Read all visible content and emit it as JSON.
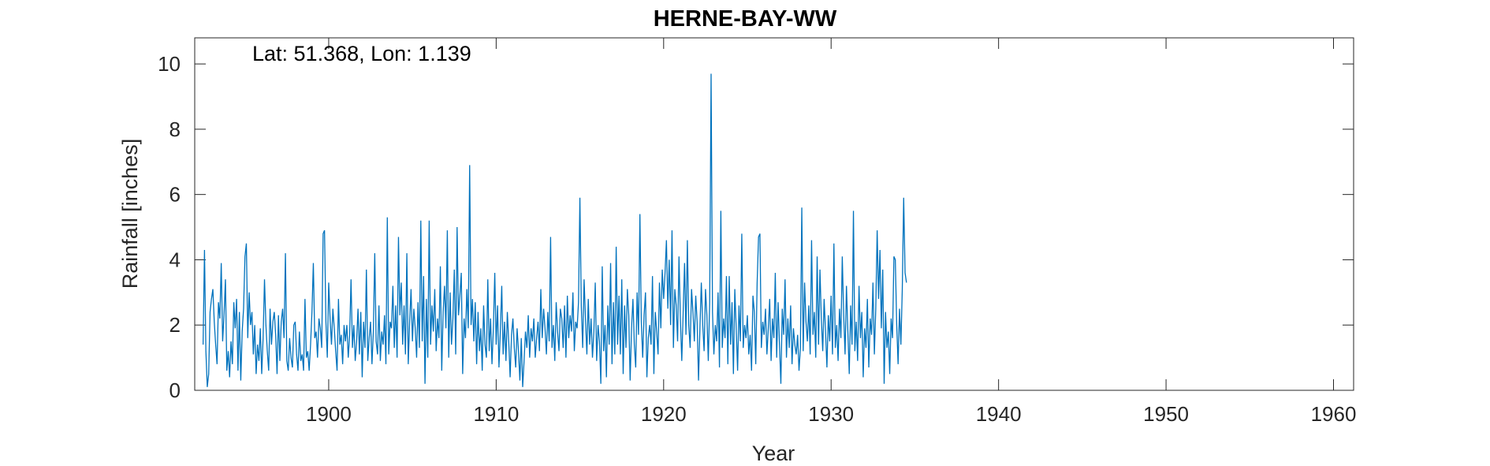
{
  "chart_data": {
    "type": "line",
    "title": "HERNE-BAY-WW",
    "annotation": "Lat: 51.368, Lon: 1.139",
    "xlabel": "Year",
    "ylabel": "Rainfall [inches]",
    "xlim": [
      1892.0,
      1961.2
    ],
    "ylim": [
      0,
      10.8
    ],
    "xticks": [
      1900,
      1910,
      1920,
      1930,
      1940,
      1950,
      1960
    ],
    "yticks": [
      0,
      2,
      4,
      6,
      8,
      10
    ],
    "grid": false,
    "line_color": "#0072BD",
    "series": [
      {
        "x_start": 1892.5,
        "x_step": 0.0833333,
        "values": [
          1.4,
          4.3,
          1.2,
          0.1,
          0.5,
          2.4,
          2.8,
          3.1,
          2.1,
          1.4,
          0.8,
          2.7,
          2.2,
          3.9,
          1.5,
          2.3,
          3.4,
          0.6,
          1.2,
          0.4,
          1.5,
          0.8,
          2.7,
          1.9,
          2.8,
          0.6,
          2.4,
          0.3,
          1.8,
          2.5,
          4.1,
          4.5,
          1.6,
          3.0,
          2.0,
          2.4,
          1.1,
          2.0,
          0.5,
          1.4,
          0.9,
          1.9,
          0.5,
          1.6,
          3.4,
          2.0,
          1.2,
          0.6,
          2.5,
          1.4,
          2.1,
          2.4,
          1.7,
          0.5,
          2.3,
          0.9,
          2.1,
          2.5,
          1.6,
          4.2,
          0.9,
          0.6,
          1.6,
          1.0,
          0.7,
          2.0,
          2.1,
          1.1,
          0.6,
          1.8,
          0.9,
          1.1,
          0.6,
          2.8,
          1.0,
          1.2,
          0.6,
          1.4,
          2.4,
          3.9,
          1.6,
          1.8,
          1.0,
          2.2,
          1.9,
          1.3,
          4.8,
          4.9,
          2.1,
          1.0,
          3.3,
          2.2,
          1.4,
          2.5,
          1.9,
          1.2,
          0.6,
          2.8,
          1.4,
          1.7,
          0.8,
          2.0,
          1.5,
          2.0,
          1.0,
          1.7,
          3.4,
          1.3,
          2.0,
          0.9,
          1.5,
          2.5,
          1.1,
          2.4,
          0.4,
          2.1,
          1.3,
          3.7,
          0.9,
          1.6,
          2.1,
          0.8,
          1.8,
          4.2,
          1.5,
          1.1,
          2.6,
          0.9,
          1.8,
          1.4,
          2.3,
          0.8,
          5.3,
          1.1,
          2.1,
          1.9,
          3.2,
          1.3,
          2.6,
          1.0,
          4.7,
          2.3,
          3.3,
          1.4,
          2.6,
          1.1,
          4.2,
          0.8,
          2.1,
          3.1,
          1.5,
          2.5,
          1.9,
          1.0,
          2.7,
          1.3,
          5.2,
          1.5,
          3.5,
          0.2,
          2.8,
          1.0,
          5.2,
          1.4,
          2.6,
          1.8,
          3.1,
          1.2,
          2.2,
          1.6,
          3.8,
          0.6,
          2.4,
          3.2,
          1.9,
          4.9,
          1.0,
          3.0,
          1.4,
          2.2,
          3.7,
          1.1,
          5.0,
          2.3,
          2.9,
          3.6,
          0.5,
          2.2,
          1.6,
          3.1,
          1.9,
          6.9,
          2.0,
          2.8,
          1.5,
          2.7,
          0.8,
          2.4,
          1.2,
          1.9,
          0.6,
          2.6,
          1.4,
          1.0,
          3.4,
          1.2,
          2.2,
          0.8,
          1.9,
          3.6,
          1.4,
          2.6,
          0.7,
          1.8,
          3.2,
          1.1,
          2.1,
          0.9,
          2.4,
          1.5,
          0.4,
          1.7,
          2.2,
          1.3,
          0.7,
          1.9,
          1.2,
          0.3,
          1.6,
          0.1,
          0.9,
          1.8,
          1.3,
          2.3,
          1.0,
          1.9,
          1.5,
          2.2,
          1.0,
          1.6,
          2.1,
          1.2,
          3.1,
          1.6,
          2.5,
          1.9,
          1.1,
          2.4,
          1.5,
          4.7,
          1.3,
          2.0,
          0.9,
          2.7,
          1.8,
          1.2,
          2.5,
          2.2,
          1.3,
          2.6,
          1.0,
          2.9,
          1.6,
          2.3,
          1.8,
          3.0,
          1.2,
          2.1,
          1.9,
          2.7,
          5.9,
          2.6,
          1.3,
          3.4,
          2.2,
          1.1,
          2.8,
          1.4,
          2.2,
          1.0,
          1.8,
          3.3,
          0.9,
          2.0,
          1.5,
          0.2,
          3.8,
          1.2,
          2.0,
          0.4,
          2.6,
          1.4,
          3.9,
          0.8,
          2.7,
          1.1,
          4.4,
          1.4,
          2.9,
          1.1,
          3.4,
          0.5,
          2.6,
          1.3,
          3.1,
          2.3,
          0.3,
          1.9,
          2.8,
          1.4,
          0.7,
          3.0,
          1.7,
          5.4,
          2.1,
          1.0,
          2.3,
          3.0,
          0.4,
          1.6,
          2.0,
          1.4,
          3.5,
          0.5,
          2.4,
          1.8,
          1.1,
          3.3,
          1.9,
          3.7,
          2.8,
          3.6,
          4.6,
          2.5,
          4.0,
          2.0,
          4.9,
          1.3,
          3.1,
          2.6,
          1.5,
          4.1,
          2.2,
          0.9,
          2.4,
          3.9,
          1.7,
          4.6,
          2.0,
          1.3,
          3.1,
          2.4,
          1.5,
          2.9,
          2.1,
          0.3,
          1.9,
          3.3,
          2.0,
          1.2,
          3.1,
          2.3,
          0.9,
          2.7,
          9.7,
          2.4,
          1.1,
          2.0,
          1.5,
          3.0,
          0.7,
          5.5,
          1.3,
          2.2,
          1.6,
          3.5,
          0.8,
          3.5,
          1.4,
          2.7,
          0.5,
          3.1,
          1.9,
          0.6,
          2.6,
          1.5,
          4.8,
          1.3,
          2.0,
          1.6,
          2.3,
          1.1,
          1.7,
          0.6,
          2.9,
          2.4,
          0.8,
          3.3,
          4.7,
          4.8,
          1.3,
          2.1,
          1.7,
          2.5,
          1.1,
          1.9,
          2.8,
          0.9,
          2.2,
          1.6,
          3.6,
          1.0,
          2.7,
          1.4,
          0.2,
          2.5,
          1.7,
          3.4,
          1.0,
          2.2,
          1.3,
          2.6,
          0.8,
          1.9,
          1.4,
          1.1,
          1.7,
          0.6,
          1.3,
          5.6,
          1.2,
          3.3,
          2.1,
          1.5,
          2.6,
          1.1,
          4.6,
          1.7,
          2.4,
          1.0,
          4.1,
          1.4,
          3.7,
          2.2,
          1.2,
          2.8,
          1.8,
          0.7,
          2.3,
          1.5,
          2.9,
          1.1,
          4.5,
          1.3,
          2.0,
          0.9,
          2.5,
          1.6,
          4.1,
          2.3,
          1.1,
          3.2,
          1.8,
          0.5,
          2.6,
          1.4,
          5.5,
          1.2,
          2.1,
          0.9,
          3.2,
          1.6,
          2.4,
          0.4,
          1.9,
          1.3,
          2.8,
          0.7,
          2.2,
          1.7,
          3.3,
          1.1,
          2.5,
          4.9,
          2.8,
          4.3,
          1.9,
          3.7,
          0.2,
          2.4,
          1.3,
          1.8,
          0.5,
          2.2,
          1.6,
          4.1,
          4.0,
          2.0,
          0.8,
          2.5,
          1.4,
          3.1,
          5.9,
          3.6,
          3.3
        ]
      }
    ]
  }
}
